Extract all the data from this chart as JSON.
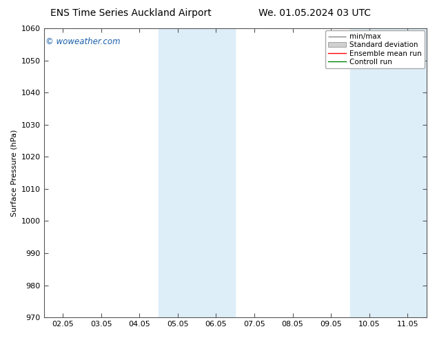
{
  "title_left": "ENS Time Series Auckland Airport",
  "title_right": "We. 01.05.2024 03 UTC",
  "ylabel": "Surface Pressure (hPa)",
  "ylim": [
    970,
    1060
  ],
  "yticks": [
    970,
    980,
    990,
    1000,
    1010,
    1020,
    1030,
    1040,
    1050,
    1060
  ],
  "xlim_start": -0.5,
  "xlim_end": 9.5,
  "xtick_labels": [
    "02.05",
    "03.05",
    "04.05",
    "05.05",
    "06.05",
    "07.05",
    "08.05",
    "09.05",
    "10.05",
    "11.05"
  ],
  "xtick_positions": [
    0,
    1,
    2,
    3,
    4,
    5,
    6,
    7,
    8,
    9
  ],
  "shaded_bands": [
    {
      "xmin": 2.5,
      "xmax": 4.5,
      "color": "#deeef8"
    },
    {
      "xmin": 7.5,
      "xmax": 9.5,
      "color": "#deeef8"
    }
  ],
  "watermark": "© woweather.com",
  "watermark_color": "#1a5fa8",
  "bg_color": "#ffffff",
  "plot_bg_color": "#ffffff",
  "title_fontsize": 10,
  "axis_label_fontsize": 8,
  "tick_fontsize": 8,
  "watermark_fontsize": 8.5,
  "legend_fontsize": 7.5
}
